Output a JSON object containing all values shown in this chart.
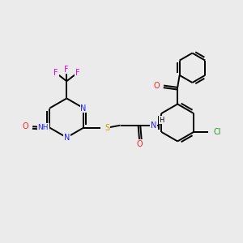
{
  "background_color": "#ebebeb",
  "atom_colors": {
    "C": "#000000",
    "N": "#2020ff",
    "O": "#ff2020",
    "S": "#c8a000",
    "F": "#ee00ee",
    "Cl": "#229922",
    "H": "#000000"
  },
  "figsize": [
    3.0,
    3.0
  ],
  "dpi": 100,
  "lw": 1.4,
  "fs": 7.0
}
